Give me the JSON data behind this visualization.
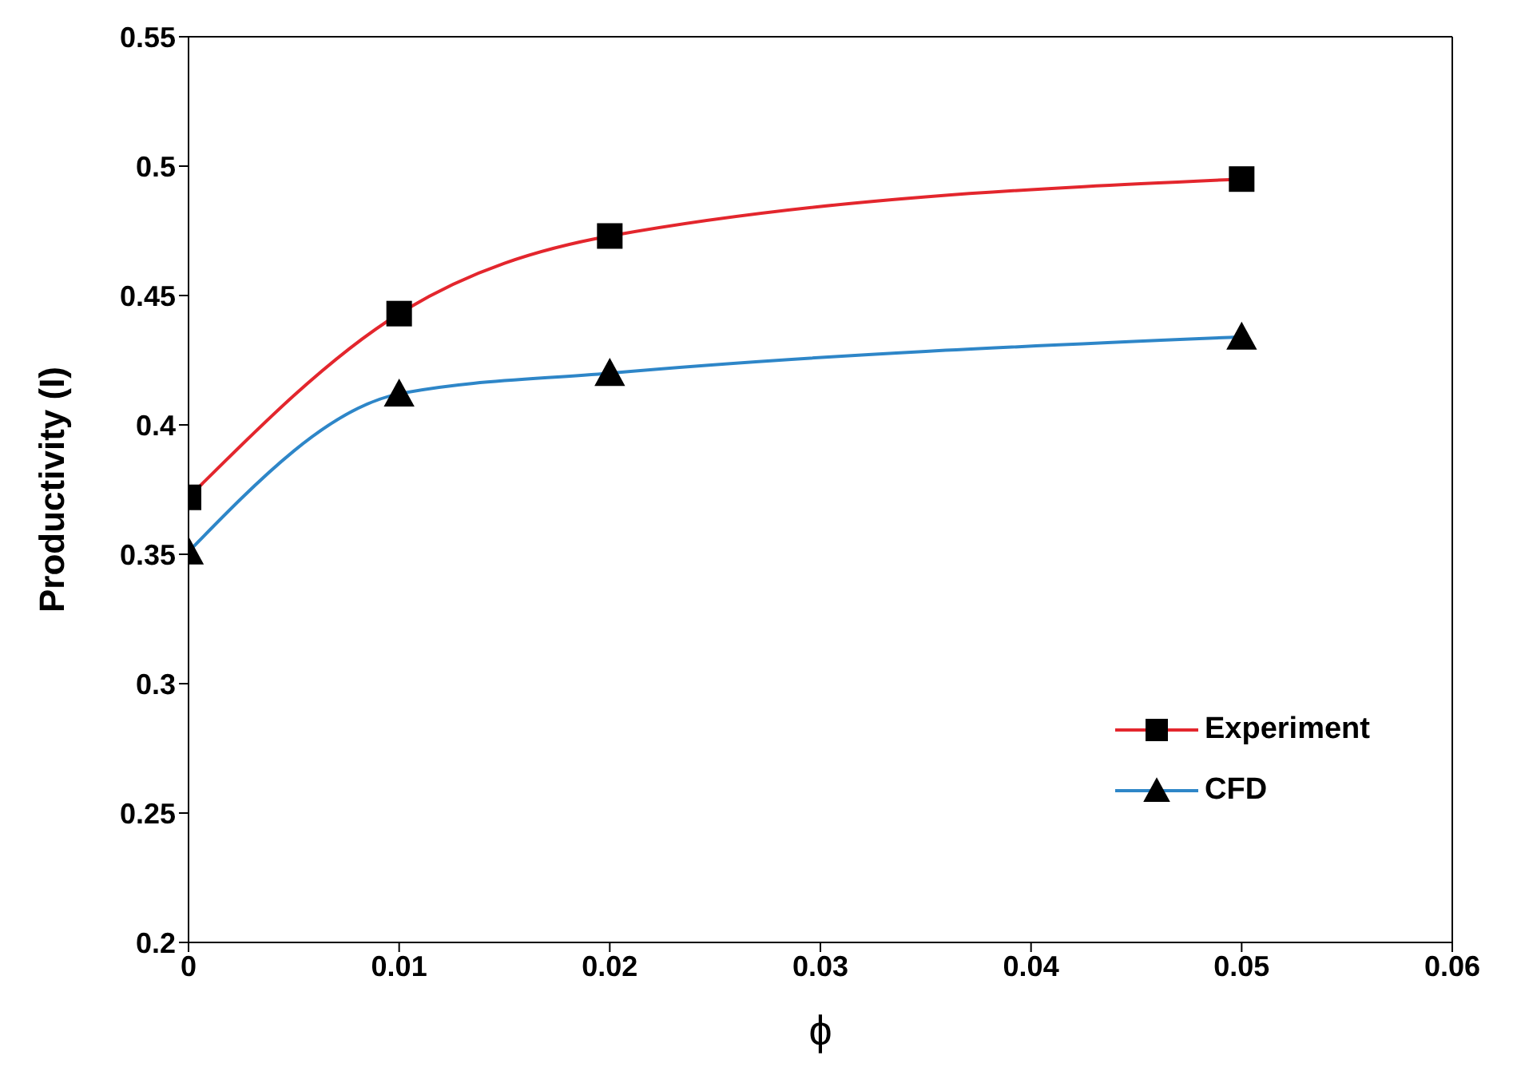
{
  "chart_data": {
    "type": "line",
    "xlabel": "ϕ",
    "ylabel": "Productivity (I)",
    "x": [
      0,
      0.01,
      0.02,
      0.05
    ],
    "series": [
      {
        "name": "Experiment",
        "color": "#e3262d",
        "marker": "square",
        "values": [
          0.372,
          0.443,
          0.473,
          0.495
        ]
      },
      {
        "name": "CFD",
        "color": "#2e86c8",
        "marker": "triangle",
        "values": [
          0.351,
          0.412,
          0.42,
          0.434
        ]
      }
    ],
    "xlim": [
      0,
      0.06
    ],
    "xticks": [
      0,
      0.01,
      0.02,
      0.03,
      0.04,
      0.05,
      0.06
    ],
    "ylim": [
      0.2,
      0.55
    ],
    "yticks": [
      0.2,
      0.25,
      0.3,
      0.35,
      0.4,
      0.45,
      0.5,
      0.55
    ],
    "grid": false,
    "legend": "bottom right",
    "line_style": "solid"
  }
}
